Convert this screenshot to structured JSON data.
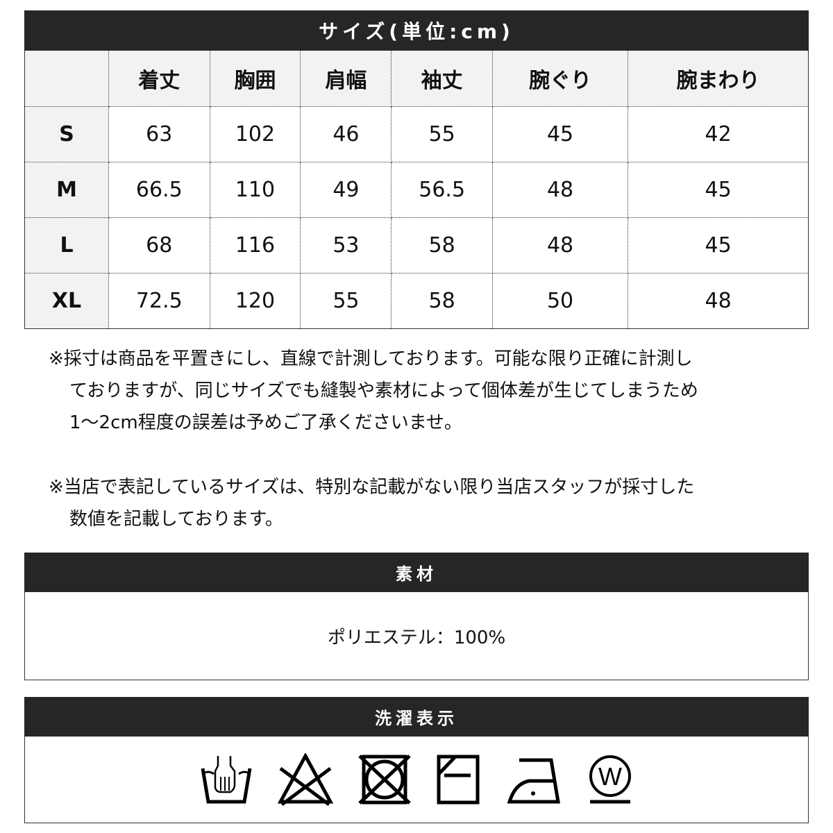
{
  "size_section": {
    "title": "サイズ(単位:cm)",
    "columns": [
      "",
      "着丈",
      "胸囲",
      "肩幅",
      "袖丈",
      "腕ぐり",
      "腕まわり"
    ],
    "rows": [
      {
        "size": "S",
        "values": [
          "63",
          "102",
          "46",
          "55",
          "45",
          "42"
        ]
      },
      {
        "size": "M",
        "values": [
          "66.5",
          "110",
          "49",
          "56.5",
          "48",
          "45"
        ]
      },
      {
        "size": "L",
        "values": [
          "68",
          "116",
          "53",
          "58",
          "48",
          "45"
        ]
      },
      {
        "size": "XL",
        "values": [
          "72.5",
          "120",
          "55",
          "58",
          "50",
          "48"
        ]
      }
    ]
  },
  "notes": [
    [
      "※採寸は商品を平置きにし、直線で計測しております。可能な限り正確に計測し",
      "ておりますが、同じサイズでも縫製や素材によって個体差が生じてしまうため",
      "1～2cm程度の誤差は予めご了承くださいませ。"
    ],
    [
      "※当店で表記しているサイズは、特別な記載がない限り当店スタッフが採寸した",
      "数値を記載しております。"
    ]
  ],
  "material": {
    "title": "素材",
    "value": "ポリエステル：100%"
  },
  "care": {
    "title": "洗濯表示",
    "icons": [
      "hand-wash-icon",
      "no-bleach-icon",
      "no-tumble-dry-icon",
      "line-dry-flat-shade-icon",
      "iron-low-icon",
      "wet-clean-icon"
    ]
  },
  "colors": {
    "header_bg": "#262626",
    "label_bg": "#f2f2f2"
  }
}
